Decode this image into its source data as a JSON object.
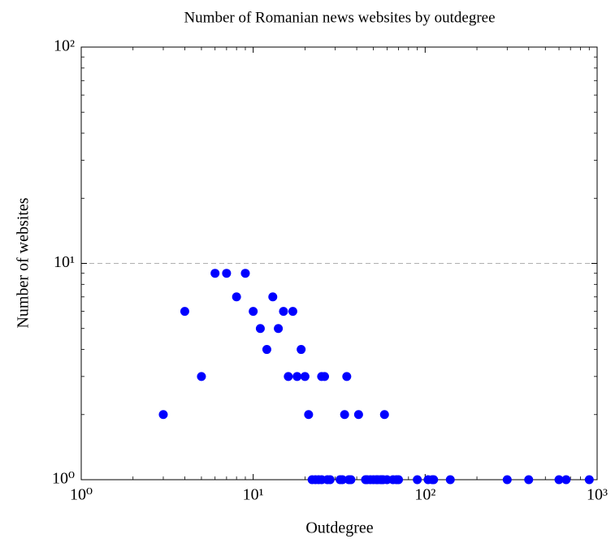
{
  "chart_data": {
    "type": "scatter",
    "title": "Number of Romanian news websites by outdegree",
    "xlabel": "Outdegree",
    "ylabel": "Number of websites",
    "xscale": "log",
    "yscale": "log",
    "ygrid": true,
    "color": "#0000ff",
    "xlim": [
      1,
      1000
    ],
    "ylim": [
      1,
      100
    ],
    "xticks": [
      {
        "value": 1,
        "label": "10⁰"
      },
      {
        "value": 10,
        "label": "10¹"
      },
      {
        "value": 100,
        "label": "10²"
      },
      {
        "value": 1000,
        "label": "10³"
      }
    ],
    "yticks": [
      {
        "value": 1,
        "label": "10⁰"
      },
      {
        "value": 10,
        "label": "10¹"
      },
      {
        "value": 100,
        "label": "10²"
      }
    ],
    "x": [
      3,
      4,
      5,
      6,
      7,
      8,
      9,
      10,
      11,
      12,
      13,
      14,
      15,
      16,
      17,
      18,
      19,
      20,
      21,
      25,
      26,
      34,
      35,
      41,
      58,
      22,
      23,
      24,
      25,
      27,
      28,
      32,
      33,
      36,
      37,
      45,
      46,
      48,
      50,
      52,
      53,
      55,
      56,
      57,
      60,
      65,
      68,
      70,
      90,
      104,
      110,
      112,
      140,
      300,
      400,
      600,
      660,
      900
    ],
    "y": [
      2,
      6,
      3,
      9,
      9,
      7,
      9,
      6,
      5,
      4,
      7,
      5,
      6,
      3,
      6,
      3,
      4,
      3,
      2,
      3,
      3,
      2,
      3,
      2,
      2,
      1,
      1,
      1,
      1,
      1,
      1,
      1,
      1,
      1,
      1,
      1,
      1,
      1,
      1,
      1,
      1,
      1,
      1,
      1,
      1,
      1,
      1,
      1,
      1,
      1,
      1,
      1,
      1,
      1,
      1,
      1,
      1,
      1
    ]
  }
}
